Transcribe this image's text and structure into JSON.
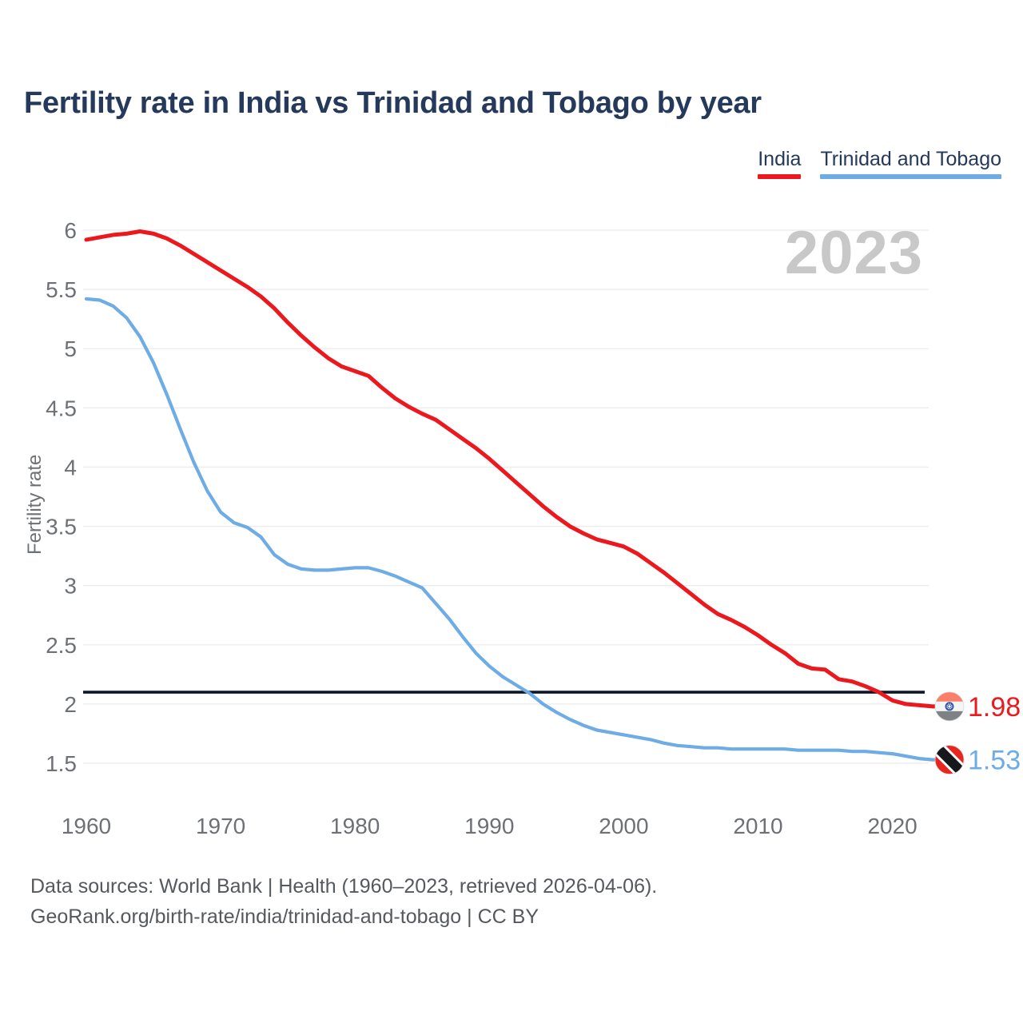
{
  "page": {
    "watermark": "2023"
  },
  "legend": {
    "items": [
      {
        "label": "India",
        "color": "#eb191e"
      },
      {
        "label": "Trinidad and Tobago",
        "color": "#6eace6"
      }
    ]
  },
  "axis": {
    "ylabel": "Fertility rate"
  },
  "footer": {
    "line1": "Data sources: World Bank | Health (1960–2023, retrieved 2026-04-06).",
    "line2": "GeoRank.org/birth-rate/india/trinidad-and-tobago | CC BY"
  },
  "chart_data": {
    "type": "line",
    "title": "Fertility rate in India vs Trinidad and Tobago by year",
    "xlabel": "",
    "ylabel": "Fertility rate",
    "ylim": [
      1.5,
      6
    ],
    "yticks": [
      6,
      5.5,
      5,
      4.5,
      4,
      3.5,
      3,
      2.5,
      2,
      1.5
    ],
    "xticks": [
      1960,
      1970,
      1980,
      1990,
      2000,
      2010,
      2020
    ],
    "x_start": 1960,
    "x_end": 2023,
    "grid": "horizontal",
    "legend_position": "top-right",
    "watermark_year": "2023",
    "reference_line": {
      "value": 2.1,
      "color": "#0e1726"
    },
    "series": [
      {
        "name": "India",
        "color": "#eb191e",
        "end_label": "1.98",
        "flag": "india",
        "x": [
          1960,
          1961,
          1962,
          1963,
          1964,
          1965,
          1966,
          1967,
          1968,
          1969,
          1970,
          1971,
          1972,
          1973,
          1974,
          1975,
          1976,
          1977,
          1978,
          1979,
          1980,
          1981,
          1982,
          1983,
          1984,
          1985,
          1986,
          1987,
          1988,
          1989,
          1990,
          1991,
          1992,
          1993,
          1994,
          1995,
          1996,
          1997,
          1998,
          1999,
          2000,
          2001,
          2002,
          2003,
          2004,
          2005,
          2006,
          2007,
          2008,
          2009,
          2010,
          2011,
          2012,
          2013,
          2014,
          2015,
          2016,
          2017,
          2018,
          2019,
          2020,
          2021,
          2022,
          2023
        ],
        "values": [
          5.92,
          5.94,
          5.96,
          5.97,
          5.99,
          5.97,
          5.93,
          5.87,
          5.8,
          5.73,
          5.66,
          5.59,
          5.52,
          5.44,
          5.34,
          5.22,
          5.11,
          5.01,
          4.92,
          4.85,
          4.81,
          4.77,
          4.67,
          4.58,
          4.51,
          4.45,
          4.4,
          4.32,
          4.24,
          4.16,
          4.07,
          3.97,
          3.87,
          3.77,
          3.67,
          3.58,
          3.5,
          3.44,
          3.39,
          3.36,
          3.33,
          3.27,
          3.19,
          3.11,
          3.02,
          2.93,
          2.84,
          2.76,
          2.71,
          2.65,
          2.58,
          2.5,
          2.43,
          2.34,
          2.3,
          2.29,
          2.21,
          2.19,
          2.15,
          2.1,
          2.03,
          2.0,
          1.99,
          1.98
        ]
      },
      {
        "name": "Trinidad and Tobago",
        "color": "#6eace6",
        "end_label": "1.53",
        "flag": "trinidad-and-tobago",
        "x": [
          1960,
          1961,
          1962,
          1963,
          1964,
          1965,
          1966,
          1967,
          1968,
          1969,
          1970,
          1971,
          1972,
          1973,
          1974,
          1975,
          1976,
          1977,
          1978,
          1979,
          1980,
          1981,
          1982,
          1983,
          1984,
          1985,
          1986,
          1987,
          1988,
          1989,
          1990,
          1991,
          1992,
          1993,
          1994,
          1995,
          1996,
          1997,
          1998,
          1999,
          2000,
          2001,
          2002,
          2003,
          2004,
          2005,
          2006,
          2007,
          2008,
          2009,
          2010,
          2011,
          2012,
          2013,
          2014,
          2015,
          2016,
          2017,
          2018,
          2019,
          2020,
          2021,
          2022,
          2023
        ],
        "values": [
          5.42,
          5.41,
          5.36,
          5.26,
          5.1,
          4.88,
          4.61,
          4.32,
          4.04,
          3.8,
          3.62,
          3.53,
          3.49,
          3.41,
          3.26,
          3.18,
          3.14,
          3.13,
          3.13,
          3.14,
          3.15,
          3.15,
          3.12,
          3.08,
          3.03,
          2.98,
          2.85,
          2.72,
          2.57,
          2.43,
          2.32,
          2.23,
          2.16,
          2.09,
          2.0,
          1.93,
          1.87,
          1.82,
          1.78,
          1.76,
          1.74,
          1.72,
          1.7,
          1.67,
          1.65,
          1.64,
          1.63,
          1.63,
          1.62,
          1.62,
          1.62,
          1.62,
          1.62,
          1.61,
          1.61,
          1.61,
          1.61,
          1.6,
          1.6,
          1.59,
          1.58,
          1.56,
          1.54,
          1.53
        ]
      }
    ],
    "flag_colors": {
      "india": {
        "top": "#fa8069",
        "middle": "#f4f5f7",
        "bottom": "#7f8285",
        "chakra": "#2b50a1"
      },
      "trinidad_and_tobago": {
        "field": "#e8251e",
        "band": "#17181c",
        "fimbriation": "#ffffff"
      }
    }
  }
}
